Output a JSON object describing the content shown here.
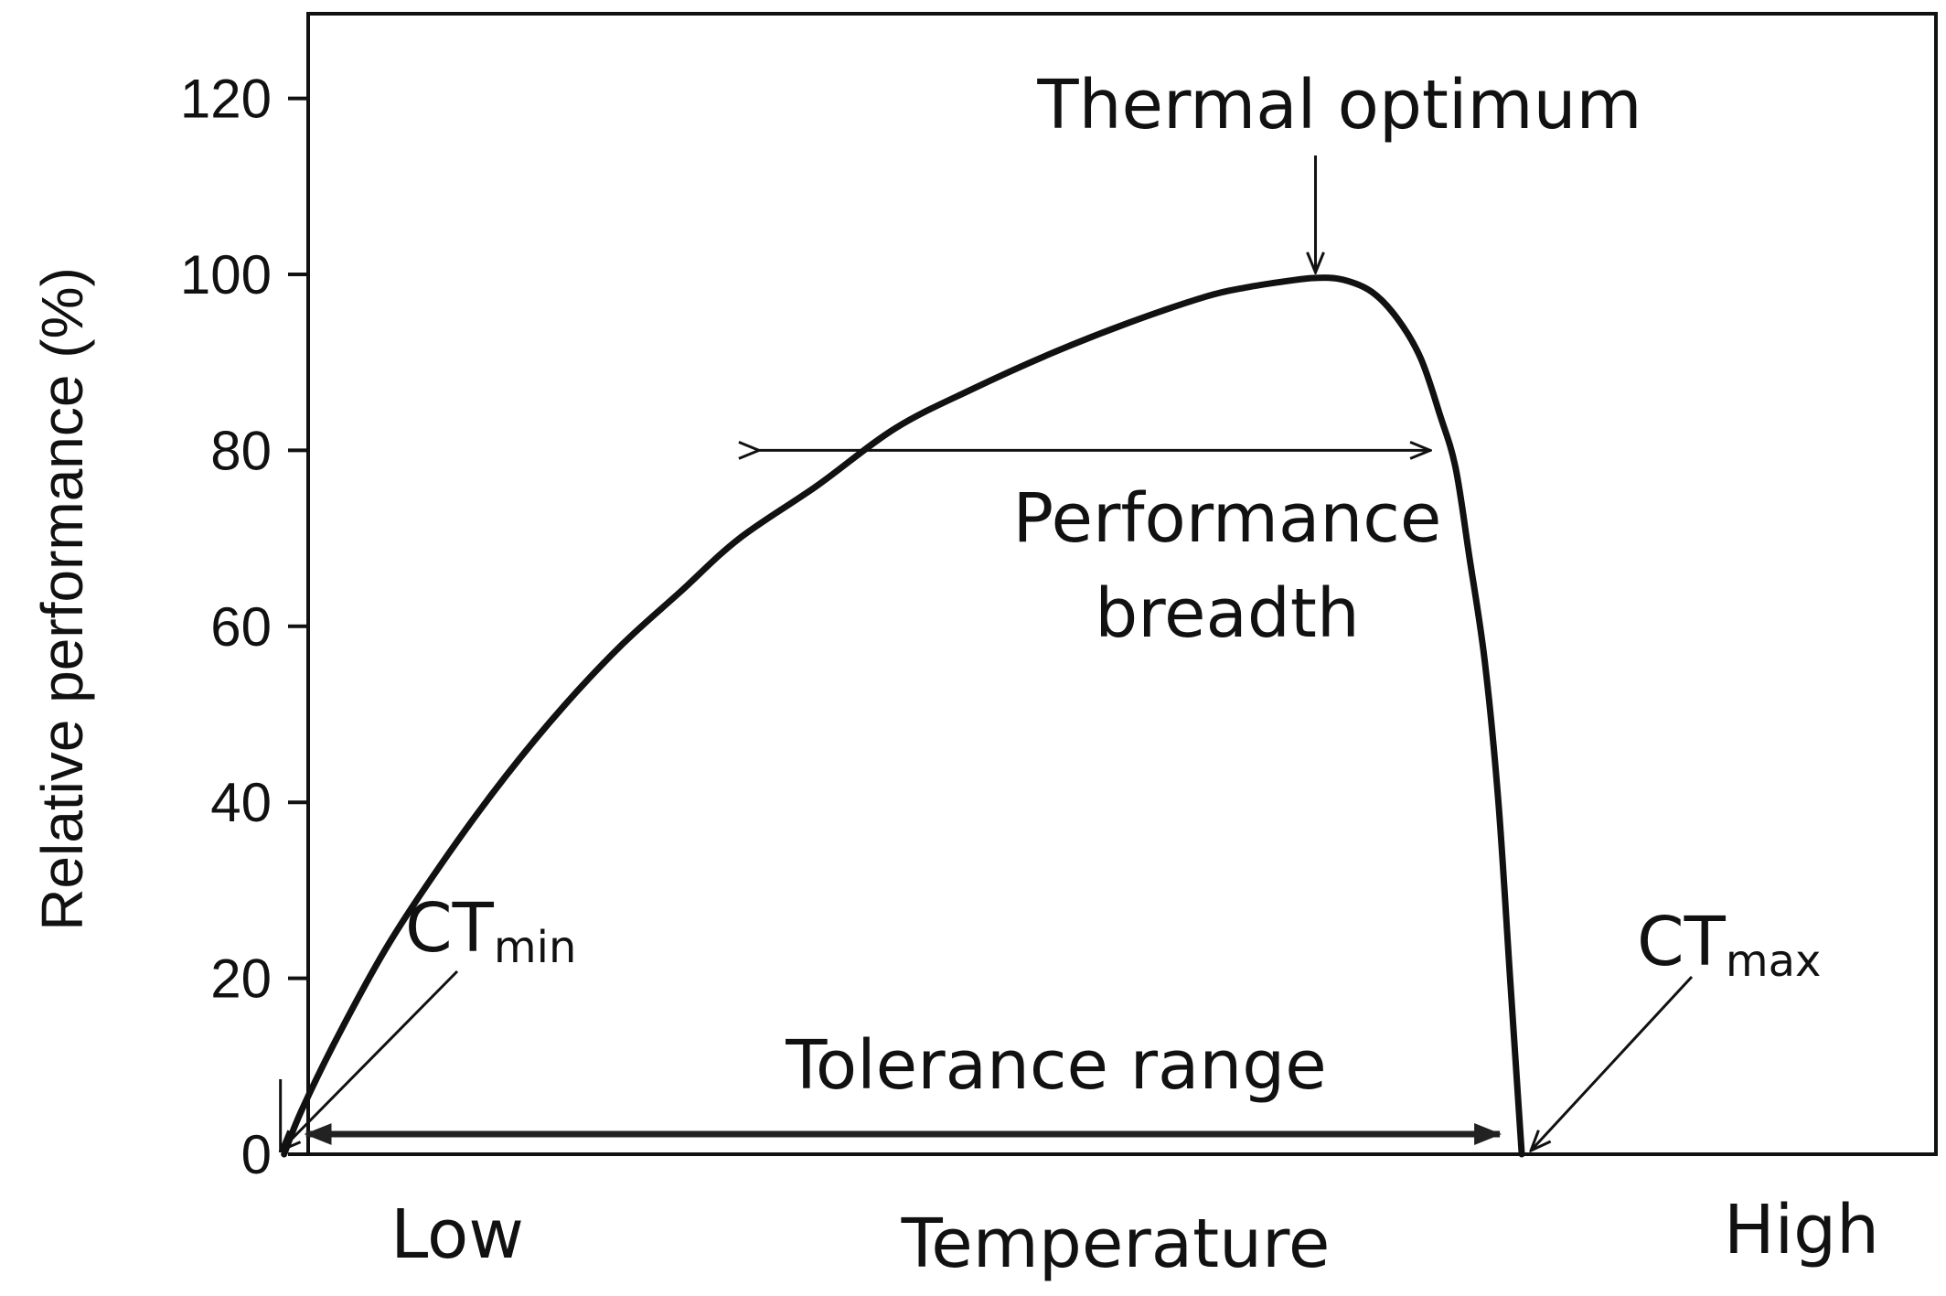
{
  "chart_data": {
    "type": "line",
    "xlabel": "Temperature",
    "ylabel": "Relative performance (%)",
    "ylim": [
      0,
      130
    ],
    "yticks": [
      0,
      20,
      40,
      60,
      80,
      100,
      120
    ],
    "x_endpoints": {
      "low": "Low",
      "high": "High"
    },
    "xlim": [
      0,
      100
    ],
    "grid": false,
    "legend": "none",
    "series": [
      {
        "x": [
          14.6,
          15.5,
          17.5,
          20,
          23,
          26,
          29,
          32,
          35,
          38,
          42,
          46,
          50,
          54,
          58,
          62,
          64,
          66,
          67.6,
          69,
          70.5,
          71.8,
          73,
          74,
          74.8,
          75.5,
          76.3,
          77,
          77.6,
          78.2
        ],
        "y": [
          0,
          5,
          14,
          24,
          34,
          43,
          51,
          58,
          64,
          70,
          76,
          82.5,
          87,
          91,
          94.5,
          97.5,
          98.5,
          99.2,
          99.6,
          99.4,
          98,
          95,
          90.5,
          84,
          78,
          68,
          56,
          40,
          20,
          0
        ],
        "color": "#111111"
      }
    ],
    "annotations": {
      "thermal_optimum": {
        "text": "Thermal optimum",
        "x": 67.6,
        "y": 99.6
      },
      "performance_breadth": {
        "line1": "Performance",
        "line2": "breadth",
        "x_from": 39,
        "x_to": 73.5,
        "y": 80
      },
      "tolerance_range": {
        "text": "Tolerance range",
        "x_from": 14.6,
        "x_to": 78.2,
        "y": 0
      },
      "ct_min": {
        "main": "CT",
        "sub": "min",
        "x": 14.6
      },
      "ct_max": {
        "main": "CT",
        "sub": "max",
        "x": 78.2
      }
    }
  }
}
